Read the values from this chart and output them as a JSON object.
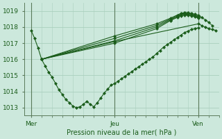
{
  "xlabel": "Pression niveau de la mer( hPa )",
  "x_tick_labels": [
    "Mer",
    "Jeu",
    "Ven"
  ],
  "x_tick_positions": [
    0,
    24,
    48
  ],
  "ylim": [
    1012.5,
    1019.5
  ],
  "xlim": [
    -2,
    54
  ],
  "yticks": [
    1013,
    1014,
    1015,
    1016,
    1017,
    1018,
    1019
  ],
  "background_color": "#cce8dc",
  "grid_color": "#aacfbe",
  "line_color": "#1a5c1a",
  "marker_color": "#1a5c1a",
  "marker": "D",
  "markersize": 2.2,
  "linewidth": 0.8,
  "vline_color": "#5a7a5a",
  "series": [
    {
      "x": [
        0,
        1,
        2,
        3,
        24,
        48,
        49,
        50,
        51,
        52,
        53
      ],
      "y": [
        1017.8,
        1017.3,
        1016.7,
        1016.0,
        1017.1,
        1018.2,
        1018.1,
        1018.0,
        1017.9,
        1017.85,
        1017.8
      ]
    },
    {
      "x": [
        3,
        24,
        36,
        40,
        42,
        43,
        44,
        45,
        46,
        47,
        48,
        49,
        50,
        51,
        52
      ],
      "y": [
        1016.0,
        1017.45,
        1018.2,
        1018.55,
        1018.75,
        1018.85,
        1018.9,
        1018.9,
        1018.85,
        1018.8,
        1018.75,
        1018.6,
        1018.45,
        1018.3,
        1018.1
      ]
    },
    {
      "x": [
        3,
        24,
        36,
        40,
        42,
        43,
        44,
        45,
        46,
        47,
        48
      ],
      "y": [
        1016.0,
        1017.3,
        1018.1,
        1018.5,
        1018.7,
        1018.8,
        1018.85,
        1018.85,
        1018.8,
        1018.75,
        1018.65
      ]
    },
    {
      "x": [
        3,
        24,
        36,
        40,
        42,
        43,
        44,
        45,
        46,
        47,
        48
      ],
      "y": [
        1016.0,
        1017.15,
        1018.0,
        1018.45,
        1018.65,
        1018.75,
        1018.8,
        1018.8,
        1018.75,
        1018.7,
        1018.6
      ]
    },
    {
      "x": [
        3,
        24,
        36,
        40,
        42,
        43,
        44,
        45,
        46,
        47,
        48
      ],
      "y": [
        1016.0,
        1017.0,
        1017.9,
        1018.4,
        1018.6,
        1018.7,
        1018.75,
        1018.75,
        1018.7,
        1018.65,
        1018.55
      ]
    },
    {
      "x": [
        3,
        4,
        5,
        6,
        7,
        8,
        9,
        10,
        11,
        12,
        13,
        14,
        15,
        16,
        17,
        18,
        19,
        20,
        21,
        22,
        23,
        24,
        25,
        26,
        27,
        28,
        29,
        30,
        31,
        32,
        33,
        34,
        35,
        36,
        37,
        38,
        39,
        40,
        41,
        42,
        43,
        44,
        45,
        46,
        47,
        48
      ],
      "y": [
        1016.0,
        1015.6,
        1015.2,
        1014.9,
        1014.5,
        1014.1,
        1013.8,
        1013.5,
        1013.3,
        1013.1,
        1013.0,
        1013.05,
        1013.2,
        1013.4,
        1013.2,
        1013.05,
        1013.3,
        1013.6,
        1013.9,
        1014.15,
        1014.4,
        1014.5,
        1014.65,
        1014.8,
        1014.95,
        1015.1,
        1015.25,
        1015.4,
        1015.55,
        1015.7,
        1015.85,
        1016.0,
        1016.15,
        1016.35,
        1016.55,
        1016.75,
        1016.9,
        1017.05,
        1017.2,
        1017.35,
        1017.5,
        1017.65,
        1017.75,
        1017.85,
        1017.9,
        1017.95
      ]
    }
  ]
}
